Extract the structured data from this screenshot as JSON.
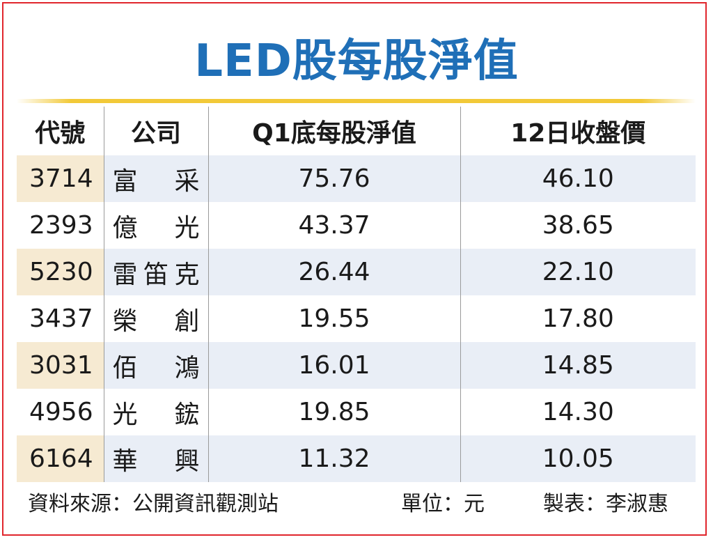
{
  "chart_data": {
    "type": "table",
    "title": "LED股每股淨值",
    "columns": [
      "代號",
      "公司",
      "Q1底每股淨值",
      "12日收盤價"
    ],
    "rows": [
      {
        "code": "3714",
        "company": [
          "富",
          "采"
        ],
        "nav": "75.76",
        "close": "46.10"
      },
      {
        "code": "2393",
        "company": [
          "億",
          "光"
        ],
        "nav": "43.37",
        "close": "38.65"
      },
      {
        "code": "5230",
        "company": [
          "雷",
          "笛",
          "克"
        ],
        "nav": "26.44",
        "close": "22.10"
      },
      {
        "code": "3437",
        "company": [
          "榮",
          "創"
        ],
        "nav": "19.55",
        "close": "17.80"
      },
      {
        "code": "3031",
        "company": [
          "佰",
          "鴻"
        ],
        "nav": "16.01",
        "close": "14.85"
      },
      {
        "code": "4956",
        "company": [
          "光",
          "鋐"
        ],
        "nav": "19.85",
        "close": "14.30"
      },
      {
        "code": "6164",
        "company": [
          "華",
          "興"
        ],
        "nav": "11.32",
        "close": "10.05"
      }
    ],
    "footer": {
      "source": "資料來源：公開資訊觀測站",
      "unit": "單位：元",
      "maker": "製表：李淑惠"
    }
  },
  "colors": {
    "title": "#1f6fb7",
    "frame": "#e0262c",
    "rule": "#f2c938",
    "row_band": "#e9eef6",
    "code_band": "#f6ead2"
  }
}
